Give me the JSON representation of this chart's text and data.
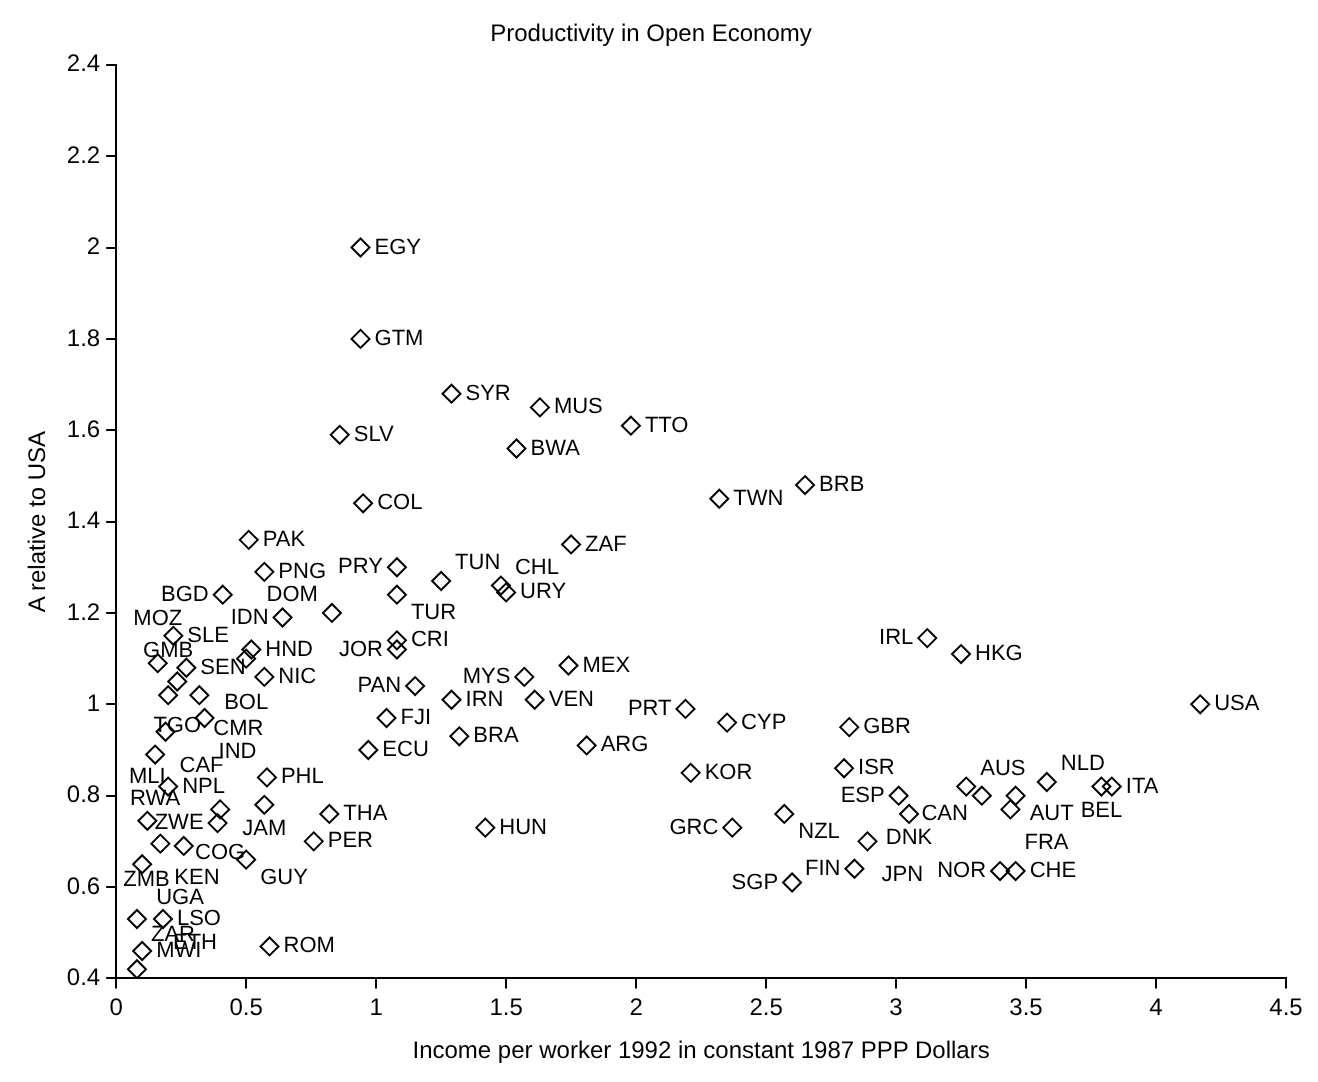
{
  "chart_data": {
    "type": "scatter",
    "title": "Productivity in Open Economy",
    "xlabel": "Income per worker 1992 in constant 1987 PPP Dollars",
    "ylabel": "A relative to USA",
    "xlim": [
      0,
      4.5
    ],
    "xticks": [
      0,
      0.5,
      1,
      1.5,
      2,
      2.5,
      3,
      3.5,
      4,
      4.5
    ],
    "ylim": [
      0.4,
      2.4
    ],
    "yticks": [
      0.4,
      0.6,
      0.8,
      1,
      1.2,
      1.4,
      1.6,
      1.8,
      2,
      2.2,
      2.4
    ],
    "grid": false,
    "legend": false,
    "marker": "diamond",
    "series": [
      {
        "color": "#000000",
        "x": [
          0.94,
          0.94,
          1.29,
          1.63,
          1.98,
          0.86,
          1.54,
          0.95,
          2.32,
          2.65,
          1.75,
          1.08,
          1.25,
          1.48,
          1.5,
          1.08,
          0.83,
          1.08,
          1.08,
          1.15,
          1.29,
          1.57,
          1.74,
          1.61,
          1.04,
          2.19,
          2.35,
          0.97,
          1.32,
          1.81,
          2.21,
          1.42,
          2.37,
          0.51,
          0.57,
          0.41,
          0.64,
          0.22,
          0.52,
          0.5,
          0.16,
          0.27,
          0.235,
          0.57,
          0.2,
          0.32,
          0.34,
          0.19,
          0.15,
          0.58,
          0.2,
          0.57,
          0.4,
          0.39,
          0.12,
          0.17,
          0.26,
          0.1,
          0.5,
          0.76,
          0.82,
          0.08,
          0.18,
          0.1,
          0.08,
          0.59,
          3.12,
          3.25,
          4.17,
          2.82,
          2.8,
          3.01,
          3.27,
          3.33,
          3.46,
          3.58,
          3.79,
          3.83,
          3.44,
          3.05,
          2.57,
          2.89,
          2.84,
          2.6,
          3.4,
          3.46
        ],
        "values": [
          2.0,
          1.8,
          1.68,
          1.65,
          1.61,
          1.59,
          1.56,
          1.44,
          1.45,
          1.48,
          1.35,
          1.3,
          1.27,
          1.26,
          1.245,
          1.24,
          1.2,
          1.14,
          1.12,
          1.04,
          1.01,
          1.06,
          1.085,
          1.01,
          0.97,
          0.99,
          0.96,
          0.9,
          0.93,
          0.91,
          0.85,
          0.73,
          0.73,
          1.36,
          1.29,
          1.24,
          1.19,
          1.15,
          1.12,
          1.1,
          1.09,
          1.08,
          1.05,
          1.06,
          1.02,
          1.02,
          0.97,
          0.94,
          0.89,
          0.84,
          0.82,
          0.78,
          0.77,
          0.74,
          0.745,
          0.695,
          0.69,
          0.65,
          0.66,
          0.7,
          0.76,
          0.53,
          0.53,
          0.46,
          0.42,
          0.47,
          1.145,
          1.11,
          1.0,
          0.95,
          0.86,
          0.8,
          0.82,
          0.8,
          0.8,
          0.83,
          0.82,
          0.82,
          0.77,
          0.76,
          0.76,
          0.7,
          0.64,
          0.61,
          0.635,
          0.635
        ],
        "value_labels": [
          "EGY",
          "GTM",
          "SYR",
          "MUS",
          "TTO",
          "SLV",
          "BWA",
          "COL",
          "TWN",
          "BRB",
          "ZAF",
          "PRY",
          "TUN",
          "CHL",
          "URY",
          "TUR",
          "DOM",
          "CRI",
          "JOR",
          "PAN",
          "IRN",
          "MYS",
          "MEX",
          "VEN",
          "FJI",
          "PRT",
          "CYP",
          "ECU",
          "BRA",
          "ARG",
          "KOR",
          "HUN",
          "GRC",
          "PAK",
          "PNG",
          "BGD",
          "IDN",
          "SLE",
          "HND",
          "BOL",
          "MOZ",
          "SEN",
          "TGO",
          "NIC",
          "GMB",
          "CMR",
          "IND",
          "CAF",
          "RWA",
          "PHL",
          "NPL",
          "JAM",
          "COG",
          "ZWE",
          "MLI",
          "KEN",
          "ZMB",
          "UGA",
          "GUY",
          "PER",
          "THA",
          "ETH",
          "LSO",
          "MWI",
          "ZAR",
          "ROM",
          "IRL",
          "HKG",
          "USA",
          "GBR",
          "ISR",
          "ESP",
          "AUS",
          "CAN",
          "AUT",
          "NLD",
          "BEL",
          "ITA",
          "FRA",
          "DNK",
          "NZL",
          "JPN",
          "FIN",
          "SGP",
          "NOR",
          "CHE"
        ]
      }
    ]
  }
}
